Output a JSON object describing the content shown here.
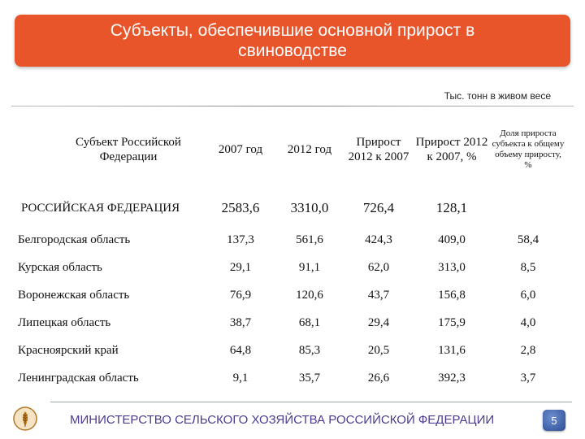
{
  "title": "Субъекты, обеспечившие основной прирост в свиноводстве",
  "units": "Тыс. тонн в живом весе",
  "table": {
    "headers": [
      "Субъект Российской Федерации",
      "2007 год",
      "2012 год",
      "Прирост 2012 к 2007",
      "Прирост 2012 к 2007, %",
      "Доля прироста субъекта к общему объему приросту, %"
    ],
    "total": {
      "name": "РОССИЙСКАЯ ФЕДЕРАЦИЯ",
      "v2007": "2583,6",
      "v2012": "3310,0",
      "growth": "726,4",
      "growth_pct": "128,1",
      "share": ""
    },
    "rows": [
      {
        "name": "Белгородская область",
        "v2007": "137,3",
        "v2012": "561,6",
        "growth": "424,3",
        "growth_pct": "409,0",
        "share": "58,4"
      },
      {
        "name": "Курская область",
        "v2007": "29,1",
        "v2012": "91,1",
        "growth": "62,0",
        "growth_pct": "313,0",
        "share": "8,5"
      },
      {
        "name": "Воронежская область",
        "v2007": "76,9",
        "v2012": "120,6",
        "growth": "43,7",
        "growth_pct": "156,8",
        "share": "6,0"
      },
      {
        "name": "Липецкая область",
        "v2007": "38,7",
        "v2012": "68,1",
        "growth": "29,4",
        "growth_pct": "175,9",
        "share": "4,0"
      },
      {
        "name": "Красноярский край",
        "v2007": "64,8",
        "v2012": "85,3",
        "growth": "20,5",
        "growth_pct": "131,6",
        "share": "2,8"
      },
      {
        "name": "Ленинградская область",
        "v2007": "9,1",
        "v2012": "35,7",
        "growth": "26,6",
        "growth_pct": "392,3",
        "share": "3,7"
      }
    ]
  },
  "footer": {
    "ministry": "МИНИСТЕРСТВО СЕЛЬСКОГО ХОЗЯЙСТВА РОССИЙСКОЙ ФЕДЕРАЦИИ",
    "page_number": "5",
    "logo_icon": "wheat-emblem-icon"
  },
  "colors": {
    "title_bg": "#e8552b",
    "footer_text": "#4b3a8f",
    "badge": "#2b4c93"
  }
}
